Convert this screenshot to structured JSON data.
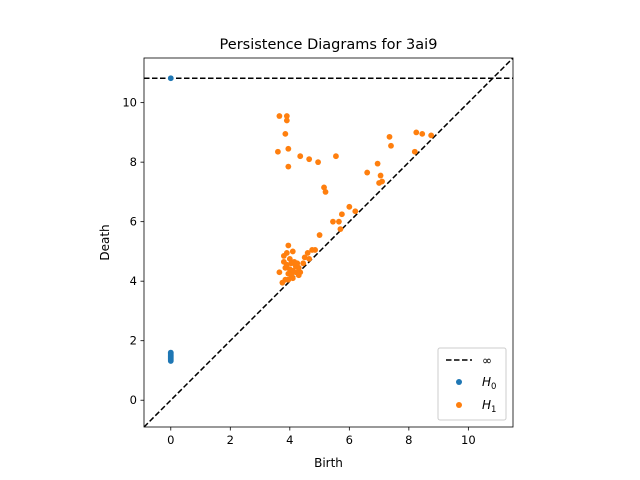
{
  "chart_data": {
    "type": "scatter",
    "title": "Persistence Diagrams for 3ai9",
    "xlabel": "Birth",
    "ylabel": "Death",
    "xlim": [
      -0.9,
      11.5
    ],
    "ylim": [
      -0.9,
      11.5
    ],
    "xticks": [
      0,
      2,
      4,
      6,
      8,
      10
    ],
    "yticks": [
      0,
      2,
      4,
      6,
      8,
      10
    ],
    "grid": false,
    "legend_position": "lower-right",
    "infinity_line": {
      "label": "∞",
      "y": 10.82,
      "color": "#000000"
    },
    "diagonal": {
      "color": "#000000"
    },
    "series": [
      {
        "name": "H0",
        "label_main": "H",
        "label_sub": "0",
        "color": "#1f77b4",
        "points": [
          [
            0,
            10.82
          ],
          [
            0,
            1.32
          ],
          [
            0,
            1.36
          ],
          [
            0,
            1.4
          ],
          [
            0,
            1.44
          ],
          [
            0,
            1.48
          ],
          [
            0,
            1.52
          ],
          [
            0,
            1.56
          ],
          [
            0,
            1.6
          ]
        ]
      },
      {
        "name": "H1",
        "label_main": "H",
        "label_sub": "1",
        "color": "#ff7f0e",
        "points": [
          [
            3.65,
            9.55
          ],
          [
            3.9,
            9.55
          ],
          [
            3.9,
            9.4
          ],
          [
            3.85,
            8.95
          ],
          [
            3.95,
            8.45
          ],
          [
            3.6,
            8.35
          ],
          [
            3.95,
            7.85
          ],
          [
            4.35,
            8.2
          ],
          [
            4.65,
            8.1
          ],
          [
            4.95,
            8.0
          ],
          [
            5.55,
            8.2
          ],
          [
            5.15,
            7.15
          ],
          [
            5.2,
            7.0
          ],
          [
            6.0,
            6.5
          ],
          [
            6.2,
            6.35
          ],
          [
            5.75,
            6.25
          ],
          [
            5.45,
            6.0
          ],
          [
            5.65,
            6.0
          ],
          [
            5.7,
            5.75
          ],
          [
            5.0,
            5.55
          ],
          [
            4.75,
            5.05
          ],
          [
            4.85,
            5.05
          ],
          [
            4.6,
            4.95
          ],
          [
            4.65,
            4.75
          ],
          [
            4.45,
            4.6
          ],
          [
            4.5,
            4.8
          ],
          [
            3.95,
            5.2
          ],
          [
            4.1,
            5.0
          ],
          [
            3.9,
            4.95
          ],
          [
            3.8,
            4.85
          ],
          [
            3.8,
            4.65
          ],
          [
            3.9,
            4.55
          ],
          [
            4.0,
            4.75
          ],
          [
            4.05,
            4.6
          ],
          [
            4.15,
            4.65
          ],
          [
            4.2,
            4.5
          ],
          [
            4.0,
            4.4
          ],
          [
            4.1,
            4.35
          ],
          [
            3.95,
            4.25
          ],
          [
            4.05,
            4.2
          ],
          [
            4.2,
            4.3
          ],
          [
            4.3,
            4.45
          ],
          [
            4.3,
            4.2
          ],
          [
            4.1,
            4.1
          ],
          [
            3.95,
            4.05
          ],
          [
            3.85,
            4.05
          ],
          [
            3.75,
            3.95
          ],
          [
            3.65,
            4.3
          ],
          [
            3.85,
            4.45
          ],
          [
            4.25,
            4.6
          ],
          [
            4.35,
            4.3
          ],
          [
            6.6,
            7.65
          ],
          [
            6.95,
            7.95
          ],
          [
            7.05,
            7.55
          ],
          [
            7.1,
            7.35
          ],
          [
            7.0,
            7.3
          ],
          [
            7.35,
            8.85
          ],
          [
            7.4,
            8.55
          ],
          [
            8.2,
            8.35
          ],
          [
            8.25,
            9.0
          ],
          [
            8.45,
            8.95
          ],
          [
            8.75,
            8.9
          ]
        ]
      }
    ]
  }
}
